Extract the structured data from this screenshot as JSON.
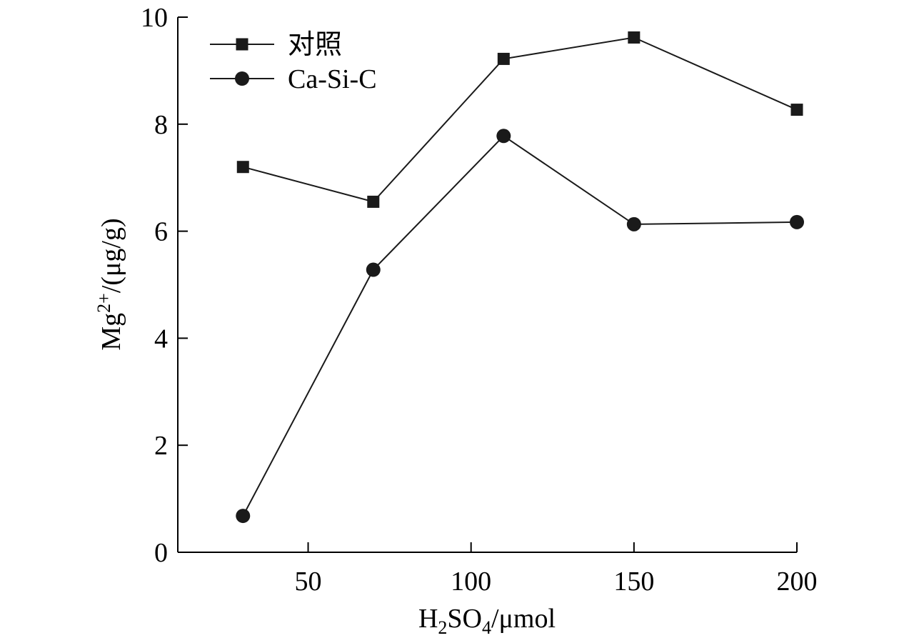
{
  "chart_data": {
    "type": "line",
    "xlabel": {
      "main": "H",
      "sub1": "2",
      "mid": "SO",
      "sub2": "4",
      "tail": "/μmol"
    },
    "ylabel": {
      "main": "Mg",
      "sup": "2+",
      "tail": "/(μg/g)"
    },
    "xlim": [
      10,
      200
    ],
    "ylim": [
      0,
      10
    ],
    "x_ticks": [
      50,
      100,
      150,
      200
    ],
    "x_tick_labels": [
      "50",
      "100",
      "150",
      "200"
    ],
    "y_ticks": [
      0,
      2,
      4,
      6,
      8,
      10
    ],
    "y_tick_labels": [
      "0",
      "2",
      "4",
      "6",
      "8",
      "10"
    ],
    "legend_position": "top-left",
    "series": [
      {
        "name": "对照",
        "marker": "square",
        "color": "#1a1a1a",
        "x": [
          30,
          70,
          110,
          150,
          200
        ],
        "y": [
          7.2,
          6.55,
          9.22,
          9.62,
          8.27
        ]
      },
      {
        "name": "Ca-Si-C",
        "marker": "circle",
        "color": "#1a1a1a",
        "x": [
          30,
          70,
          110,
          150,
          200
        ],
        "y": [
          0.68,
          5.28,
          7.78,
          6.13,
          6.17
        ]
      }
    ]
  }
}
